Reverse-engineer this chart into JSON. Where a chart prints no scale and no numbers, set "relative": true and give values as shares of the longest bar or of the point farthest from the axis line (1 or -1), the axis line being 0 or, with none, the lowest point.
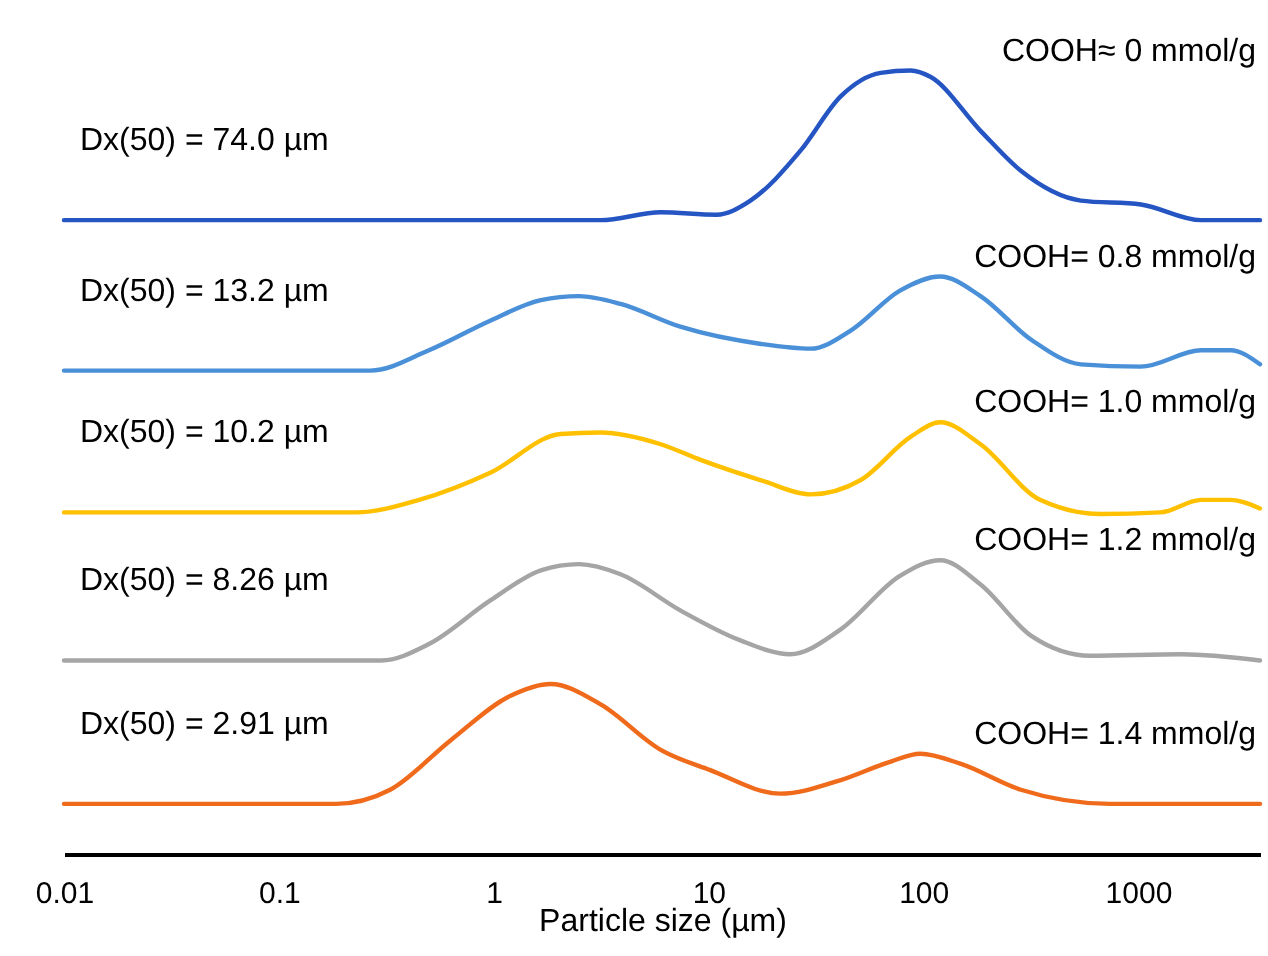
{
  "chart_data": {
    "type": "line",
    "relative": true,
    "log": "x",
    "xlabel": "Particle size (µm)",
    "xlim": [
      0.01,
      3700
    ],
    "xticks": [
      0.01,
      0.1,
      1,
      10,
      100,
      1000
    ],
    "series": [
      {
        "name": "COOH≈ 0 mmol/g",
        "color": "#2455c3",
        "x": [
          0.01,
          3.15,
          6.0,
          10.9,
          15.7,
          26.9,
          41.3,
          63.4,
          87.5,
          108,
          185,
          285,
          542,
          1033,
          1967,
          3700
        ],
        "values": [
          0.809,
          0.809,
          0.819,
          0.816,
          0.834,
          0.898,
          0.967,
          0.997,
          1,
          0.992,
          0.923,
          0.872,
          0.834,
          0.829,
          0.809,
          0.809
        ]
      },
      {
        "name": "COOH= 0.8 mmol/g",
        "color": "#4a90d9",
        "x": [
          0.01,
          0.267,
          0.5,
          0.97,
          1.66,
          2.5,
          3.9,
          7.4,
          17.6,
          30,
          46,
          78,
          120,
          185,
          320,
          542,
          1030,
          1970,
          2700,
          3700
        ],
        "values": [
          0.617,
          0.617,
          0.643,
          0.681,
          0.707,
          0.712,
          0.702,
          0.673,
          0.651,
          0.645,
          0.668,
          0.719,
          0.737,
          0.712,
          0.656,
          0.625,
          0.622,
          0.643,
          0.643,
          0.625
        ]
      },
      {
        "name": "COOH= 1.0 mmol/g",
        "color": "#ffc000",
        "x": [
          0.01,
          0.23,
          0.45,
          0.97,
          2.05,
          3.15,
          6.0,
          9.2,
          17.6,
          30,
          51,
          88,
          120,
          185,
          350,
          670,
          1270,
          1970,
          2700,
          3700
        ],
        "values": [
          0.436,
          0.436,
          0.452,
          0.487,
          0.536,
          0.538,
          0.523,
          0.503,
          0.477,
          0.459,
          0.477,
          0.533,
          0.551,
          0.523,
          0.452,
          0.434,
          0.436,
          0.452,
          0.452,
          0.441
        ]
      },
      {
        "name": "COOH= 1.2 mmol/g",
        "color": "#a5a5a5",
        "x": [
          0.01,
          0.3,
          0.5,
          0.97,
          1.66,
          2.5,
          3.9,
          7.4,
          14,
          24,
          41,
          78,
          120,
          185,
          320,
          600,
          1600,
          3700
        ],
        "values": [
          0.247,
          0.247,
          0.268,
          0.324,
          0.362,
          0.37,
          0.357,
          0.311,
          0.273,
          0.255,
          0.286,
          0.355,
          0.375,
          0.344,
          0.278,
          0.253,
          0.255,
          0.247
        ]
      },
      {
        "name": "COOH= 1.4 mmol/g",
        "color": "#f06a1c",
        "x": [
          0.01,
          0.185,
          0.33,
          0.63,
          1.2,
          1.84,
          3.15,
          6.0,
          10.2,
          21.6,
          41,
          69,
          97,
          150,
          285,
          740,
          3700
        ],
        "values": [
          0.064,
          0.064,
          0.082,
          0.145,
          0.202,
          0.217,
          0.191,
          0.133,
          0.107,
          0.077,
          0.094,
          0.117,
          0.128,
          0.115,
          0.082,
          0.064,
          0.064
        ]
      }
    ],
    "annotations": [
      "Dx(50) = 74.0 µm",
      "Dx(50) = 13.2 µm",
      "Dx(50) = 10.2 µm",
      "Dx(50) = 8.26 µm",
      "Dx(50) = 2.91 µm"
    ]
  }
}
